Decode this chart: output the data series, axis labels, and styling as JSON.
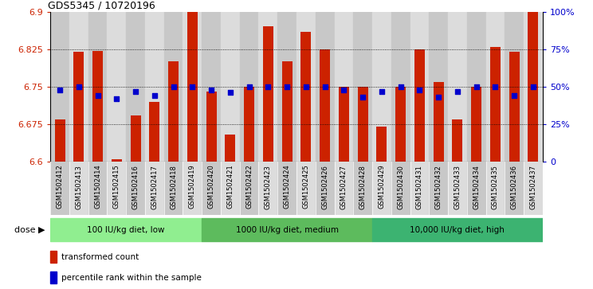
{
  "title": "GDS5345 / 10720196",
  "categories": [
    "GSM1502412",
    "GSM1502413",
    "GSM1502414",
    "GSM1502415",
    "GSM1502416",
    "GSM1502417",
    "GSM1502418",
    "GSM1502419",
    "GSM1502420",
    "GSM1502421",
    "GSM1502422",
    "GSM1502423",
    "GSM1502424",
    "GSM1502425",
    "GSM1502426",
    "GSM1502427",
    "GSM1502428",
    "GSM1502429",
    "GSM1502430",
    "GSM1502431",
    "GSM1502432",
    "GSM1502433",
    "GSM1502434",
    "GSM1502435",
    "GSM1502436",
    "GSM1502437"
  ],
  "bar_values": [
    6.685,
    6.82,
    6.822,
    6.605,
    6.693,
    6.72,
    6.8,
    6.9,
    6.74,
    6.655,
    6.75,
    6.87,
    6.8,
    6.86,
    6.825,
    6.75,
    6.75,
    6.67,
    6.75,
    6.825,
    6.76,
    6.685,
    6.75,
    6.83,
    6.82,
    6.9
  ],
  "percentile_values": [
    48,
    50,
    44,
    42,
    47,
    44,
    50,
    50,
    48,
    46,
    50,
    50,
    50,
    50,
    50,
    48,
    43,
    47,
    50,
    48,
    43,
    47,
    50,
    50,
    44,
    50
  ],
  "ylim_left": [
    6.6,
    6.9
  ],
  "ylim_right": [
    0,
    100
  ],
  "yticks_left": [
    6.6,
    6.675,
    6.75,
    6.825,
    6.9
  ],
  "yticks_right": [
    0,
    25,
    50,
    75,
    100
  ],
  "groups": [
    {
      "label": "100 IU/kg diet, low",
      "start": 0,
      "end": 8,
      "color": "#90EE90"
    },
    {
      "label": "1000 IU/kg diet, medium",
      "start": 8,
      "end": 17,
      "color": "#5DBB5D"
    },
    {
      "label": "10,000 IU/kg diet, high",
      "start": 17,
      "end": 26,
      "color": "#3CB371"
    }
  ],
  "bar_color": "#CC2200",
  "percentile_color": "#0000CC",
  "grid_color": "#000000",
  "plot_bg_color": "#FFFFFF",
  "dose_label": "dose",
  "legend_bar_label": "transformed count",
  "legend_pct_label": "percentile rank within the sample",
  "left_axis_color": "#CC2200",
  "right_axis_color": "#0000CC",
  "tick_bg_even": "#C8C8C8",
  "tick_bg_odd": "#DCDCDC"
}
